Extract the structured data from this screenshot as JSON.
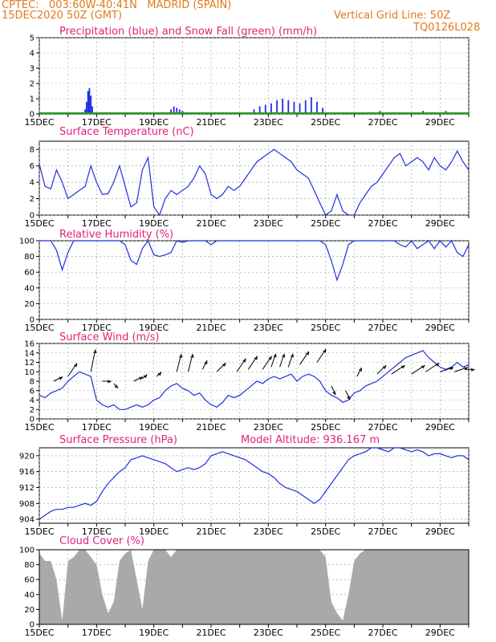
{
  "header": {
    "station": "CPTEC:   003:60W-40:41N   MADRID (SPAIN)",
    "run": "15DEC2020 50Z (GMT)",
    "grid_note": "Vertical Grid Line: 50Z",
    "code": "TQ0126L028"
  },
  "model_altitude": "Model Altitude: 936.167 m",
  "colors": {
    "line": "#1f2ee0",
    "snow": "#18a018",
    "cloud": "#a9a9a9",
    "title": "#e0227a",
    "header": "#e07a1a"
  },
  "chart_data": [
    {
      "type": "bar",
      "title": "Precipitation (blue) and Snow Fall (green) (mm/h)",
      "x_range": [
        15,
        30
      ],
      "ylim": [
        0,
        5
      ],
      "yticks": [
        "0",
        "1",
        "2",
        "3",
        "4",
        "5"
      ],
      "xticks": [
        "15DEC",
        "17DEC",
        "19DEC",
        "21DEC",
        "23DEC",
        "25DEC",
        "27DEC",
        "29DEC"
      ],
      "grid": true,
      "precip": [
        [
          16.6,
          0.3
        ],
        [
          16.65,
          0.8
        ],
        [
          16.7,
          1.5
        ],
        [
          16.75,
          1.7
        ],
        [
          16.8,
          1.2
        ],
        [
          16.85,
          0.5
        ],
        [
          16.9,
          0.1
        ],
        [
          19.2,
          0.1
        ],
        [
          19.6,
          0.3
        ],
        [
          19.7,
          0.5
        ],
        [
          19.8,
          0.4
        ],
        [
          19.9,
          0.3
        ],
        [
          20.0,
          0.2
        ],
        [
          20.5,
          0.1
        ],
        [
          21.2,
          0.1
        ],
        [
          22.2,
          0.1
        ],
        [
          22.5,
          0.3
        ],
        [
          22.7,
          0.5
        ],
        [
          22.9,
          0.6
        ],
        [
          23.1,
          0.7
        ],
        [
          23.3,
          0.9
        ],
        [
          23.5,
          1.0
        ],
        [
          23.7,
          0.9
        ],
        [
          23.9,
          0.8
        ],
        [
          24.1,
          0.7
        ],
        [
          24.3,
          0.9
        ],
        [
          24.5,
          1.1
        ],
        [
          24.7,
          0.8
        ],
        [
          24.9,
          0.4
        ],
        [
          25.1,
          0.1
        ],
        [
          26.8,
          0.1
        ],
        [
          26.9,
          0.2
        ],
        [
          27.0,
          0.1
        ],
        [
          28.2,
          0.1
        ],
        [
          28.4,
          0.2
        ],
        [
          29.0,
          0.1
        ],
        [
          29.2,
          0.2
        ],
        [
          29.4,
          0.1
        ]
      ],
      "snow": [
        [
          15.0,
          0.05
        ],
        [
          30.0,
          0.05
        ]
      ]
    },
    {
      "type": "line",
      "title": "Surface Temperature (nC)",
      "x_range": [
        15,
        30
      ],
      "ylim": [
        0,
        9
      ],
      "yticks": [
        "0",
        "2",
        "4",
        "6",
        "8"
      ],
      "xticks": [
        "15DEC",
        "17DEC",
        "19DEC",
        "21DEC",
        "23DEC",
        "25DEC",
        "27DEC",
        "29DEC"
      ],
      "grid": true,
      "x": [
        15.0,
        15.2,
        15.4,
        15.6,
        15.8,
        16.0,
        16.2,
        16.4,
        16.6,
        16.8,
        17.0,
        17.2,
        17.4,
        17.6,
        17.8,
        18.0,
        18.2,
        18.4,
        18.6,
        18.8,
        19.0,
        19.2,
        19.4,
        19.6,
        19.8,
        20.0,
        20.2,
        20.4,
        20.6,
        20.8,
        21.0,
        21.2,
        21.4,
        21.6,
        21.8,
        22.0,
        22.2,
        22.4,
        22.6,
        22.8,
        23.0,
        23.2,
        23.4,
        23.6,
        23.8,
        24.0,
        24.2,
        24.4,
        24.6,
        24.8,
        25.0,
        25.2,
        25.4,
        25.6,
        25.8,
        26.0,
        26.2,
        26.4,
        26.6,
        26.8,
        27.0,
        27.2,
        27.4,
        27.6,
        27.8,
        28.0,
        28.2,
        28.4,
        28.6,
        28.8,
        29.0,
        29.2,
        29.4,
        29.6,
        29.8,
        30.0
      ],
      "values": [
        6.2,
        3.5,
        3.2,
        5.5,
        4.0,
        2.0,
        2.5,
        3.0,
        3.5,
        6.0,
        4.0,
        2.5,
        2.6,
        4.0,
        6.0,
        3.5,
        1.0,
        1.5,
        5.5,
        7.0,
        1.0,
        0.0,
        2.0,
        3.0,
        2.5,
        3.0,
        3.5,
        4.5,
        6.0,
        5.0,
        2.5,
        2.0,
        2.5,
        3.5,
        3.0,
        3.5,
        4.5,
        5.5,
        6.5,
        7.0,
        7.5,
        8.0,
        7.5,
        7.0,
        6.5,
        5.5,
        5.0,
        4.5,
        3.0,
        1.5,
        0.0,
        0.5,
        2.5,
        0.5,
        0.0,
        0.0,
        1.5,
        2.5,
        3.5,
        4.0,
        5.0,
        6.0,
        7.0,
        7.5,
        6.0,
        6.5,
        7.0,
        6.5,
        5.5,
        7.0,
        6.0,
        5.5,
        6.5,
        7.8,
        6.5,
        5.5
      ]
    },
    {
      "type": "line",
      "title": "Relative Humidity (%)",
      "x_range": [
        15,
        30
      ],
      "ylim": [
        0,
        100
      ],
      "yticks": [
        "0",
        "20",
        "40",
        "60",
        "80",
        "100"
      ],
      "xticks": [
        "15DEC",
        "17DEC",
        "19DEC",
        "21DEC",
        "23DEC",
        "25DEC",
        "27DEC",
        "29DEC"
      ],
      "grid": true,
      "x": [
        15.0,
        15.2,
        15.4,
        15.6,
        15.8,
        16.0,
        16.2,
        16.4,
        16.6,
        16.8,
        17.0,
        17.2,
        17.4,
        17.6,
        17.8,
        18.0,
        18.2,
        18.4,
        18.6,
        18.8,
        19.0,
        19.2,
        19.4,
        19.6,
        19.8,
        20.0,
        20.2,
        20.4,
        20.6,
        20.8,
        21.0,
        21.2,
        21.4,
        21.6,
        21.8,
        22.0,
        22.2,
        22.4,
        22.6,
        22.8,
        23.0,
        23.2,
        23.4,
        23.6,
        23.8,
        24.0,
        24.2,
        24.4,
        24.6,
        24.8,
        25.0,
        25.2,
        25.4,
        25.6,
        25.8,
        26.0,
        26.2,
        26.4,
        26.6,
        26.8,
        27.0,
        27.2,
        27.4,
        27.6,
        27.8,
        28.0,
        28.2,
        28.4,
        28.6,
        28.8,
        29.0,
        29.2,
        29.4,
        29.6,
        29.8,
        30.0
      ],
      "values": [
        100,
        100,
        100,
        88,
        63,
        85,
        100,
        100,
        100,
        100,
        100,
        100,
        100,
        100,
        100,
        95,
        75,
        70,
        90,
        100,
        82,
        80,
        82,
        85,
        100,
        98,
        100,
        100,
        100,
        100,
        95,
        100,
        100,
        100,
        100,
        100,
        100,
        100,
        100,
        100,
        100,
        100,
        100,
        100,
        100,
        100,
        100,
        100,
        100,
        100,
        95,
        75,
        50,
        70,
        95,
        100,
        100,
        100,
        100,
        100,
        100,
        100,
        100,
        95,
        92,
        100,
        90,
        95,
        100,
        90,
        100,
        92,
        100,
        85,
        80,
        95
      ]
    },
    {
      "type": "line",
      "title": "Surface Wind (m/s)",
      "x_range": [
        15,
        30
      ],
      "ylim": [
        0,
        16
      ],
      "yticks": [
        "0",
        "2",
        "4",
        "6",
        "8",
        "10",
        "12",
        "14",
        "16"
      ],
      "xticks": [
        "15DEC",
        "17DEC",
        "19DEC",
        "21DEC",
        "23DEC",
        "25DEC",
        "27DEC",
        "29DEC"
      ],
      "grid": true,
      "x": [
        15.0,
        15.2,
        15.4,
        15.6,
        15.8,
        16.0,
        16.2,
        16.4,
        16.6,
        16.8,
        17.0,
        17.2,
        17.4,
        17.6,
        17.8,
        18.0,
        18.2,
        18.4,
        18.6,
        18.8,
        19.0,
        19.2,
        19.4,
        19.6,
        19.8,
        20.0,
        20.2,
        20.4,
        20.6,
        20.8,
        21.0,
        21.2,
        21.4,
        21.6,
        21.8,
        22.0,
        22.2,
        22.4,
        22.6,
        22.8,
        23.0,
        23.2,
        23.4,
        23.6,
        23.8,
        24.0,
        24.2,
        24.4,
        24.6,
        24.8,
        25.0,
        25.2,
        25.4,
        25.6,
        25.8,
        26.0,
        26.2,
        26.4,
        26.6,
        26.8,
        27.0,
        27.2,
        27.4,
        27.6,
        27.8,
        28.0,
        28.2,
        28.4,
        28.6,
        28.8,
        29.0,
        29.2,
        29.4,
        29.6,
        29.8,
        30.0
      ],
      "values": [
        5,
        4.5,
        5.5,
        6,
        6.5,
        8,
        9,
        10,
        9.5,
        9,
        4,
        3,
        2.5,
        3,
        2,
        2,
        2.5,
        3,
        2.5,
        3,
        4,
        4.5,
        6,
        7,
        7.5,
        6.5,
        6,
        5,
        5.5,
        4,
        3,
        2.5,
        3.5,
        5,
        4.5,
        5,
        6,
        7,
        8,
        7.5,
        8.5,
        9,
        8.5,
        9,
        9.5,
        8,
        9,
        9.5,
        9,
        8,
        6,
        5,
        4.5,
        3.5,
        4,
        5.5,
        6,
        7,
        7.5,
        8,
        9,
        10,
        11,
        12,
        13,
        13.5,
        14,
        14.5,
        13,
        12,
        11,
        10.5,
        11,
        12,
        11,
        11.5
      ],
      "barbs": [
        [
          15.5,
          8,
          2,
          1
        ],
        [
          16.0,
          9,
          2,
          3
        ],
        [
          16.8,
          10,
          1,
          5
        ],
        [
          17.2,
          8,
          2,
          0
        ],
        [
          17.6,
          7.5,
          1,
          -1
        ],
        [
          18.3,
          8,
          2,
          1
        ],
        [
          18.6,
          8.5,
          1,
          1
        ],
        [
          19.1,
          9,
          1,
          1
        ],
        [
          19.8,
          10,
          1,
          4
        ],
        [
          20.2,
          10,
          1,
          4
        ],
        [
          20.7,
          10.5,
          1,
          2
        ],
        [
          21.2,
          10,
          2,
          2
        ],
        [
          21.9,
          10,
          2,
          3
        ],
        [
          22.3,
          10.5,
          2,
          3
        ],
        [
          22.8,
          10.5,
          2,
          3
        ],
        [
          23.1,
          11,
          1,
          3
        ],
        [
          23.4,
          11,
          1,
          3
        ],
        [
          23.7,
          11,
          1,
          3
        ],
        [
          24.1,
          11.5,
          2,
          3
        ],
        [
          24.7,
          12,
          2,
          3
        ],
        [
          25.2,
          7,
          1,
          -2
        ],
        [
          25.7,
          6,
          1,
          -2
        ],
        [
          26.1,
          9,
          1,
          2
        ],
        [
          26.8,
          9.5,
          2,
          2
        ],
        [
          27.3,
          9.5,
          3,
          2
        ],
        [
          28.0,
          9.5,
          3,
          2
        ],
        [
          28.5,
          10,
          3,
          2
        ],
        [
          29.0,
          10,
          3,
          1
        ],
        [
          29.5,
          10,
          3,
          1
        ],
        [
          29.9,
          10.5,
          2,
          0
        ]
      ]
    },
    {
      "type": "line",
      "title": "Surface Pressure (hPa)",
      "x_range": [
        15,
        30
      ],
      "ylim": [
        903,
        922
      ],
      "yticks": [
        "904",
        "908",
        "912",
        "916",
        "920"
      ],
      "xticks": [
        "15DEC",
        "17DEC",
        "19DEC",
        "21DEC",
        "23DEC",
        "25DEC",
        "27DEC",
        "29DEC"
      ],
      "grid": true,
      "x": [
        15.0,
        15.2,
        15.4,
        15.6,
        15.8,
        16.0,
        16.2,
        16.4,
        16.6,
        16.8,
        17.0,
        17.2,
        17.4,
        17.6,
        17.8,
        18.0,
        18.2,
        18.4,
        18.6,
        18.8,
        19.0,
        19.2,
        19.4,
        19.6,
        19.8,
        20.0,
        20.2,
        20.4,
        20.6,
        20.8,
        21.0,
        21.2,
        21.4,
        21.6,
        21.8,
        22.0,
        22.2,
        22.4,
        22.6,
        22.8,
        23.0,
        23.2,
        23.4,
        23.6,
        23.8,
        24.0,
        24.2,
        24.4,
        24.6,
        24.8,
        25.0,
        25.2,
        25.4,
        25.6,
        25.8,
        26.0,
        26.2,
        26.4,
        26.6,
        26.8,
        27.0,
        27.2,
        27.4,
        27.6,
        27.8,
        28.0,
        28.2,
        28.4,
        28.6,
        28.8,
        29.0,
        29.2,
        29.4,
        29.6,
        29.8,
        30.0
      ],
      "values": [
        904,
        905,
        906,
        906.5,
        906.5,
        907,
        907,
        907.5,
        908,
        907.5,
        908.5,
        911,
        913,
        914.5,
        916,
        917,
        919,
        919.5,
        920,
        919.5,
        919,
        918.5,
        918,
        917,
        916,
        916.5,
        917,
        916.5,
        917,
        918,
        920,
        920.5,
        921,
        920.5,
        920,
        919.5,
        919,
        918,
        917,
        916,
        915.5,
        914.5,
        913,
        912,
        911.5,
        911,
        910,
        909,
        908,
        909,
        911,
        913,
        915,
        917,
        919,
        920,
        920.5,
        921,
        922,
        922,
        921.5,
        921,
        922,
        922,
        921.5,
        921,
        921.5,
        921,
        920,
        920.5,
        920.5,
        920,
        919.5,
        920,
        920,
        919
      ]
    },
    {
      "type": "area",
      "title": "Cloud Cover (%)",
      "x_range": [
        15,
        30
      ],
      "ylim": [
        0,
        100
      ],
      "yticks": [
        "0",
        "20",
        "40",
        "60",
        "80",
        "100"
      ],
      "xticks": [
        "15DEC",
        "17DEC",
        "19DEC",
        "21DEC",
        "23DEC",
        "25DEC",
        "27DEC",
        "29DEC"
      ],
      "grid": true,
      "x": [
        15.0,
        15.2,
        15.4,
        15.6,
        15.8,
        16.0,
        16.2,
        16.4,
        16.6,
        16.8,
        17.0,
        17.2,
        17.4,
        17.6,
        17.8,
        18.0,
        18.2,
        18.4,
        18.6,
        18.8,
        19.0,
        19.2,
        19.4,
        19.6,
        19.8,
        20.0,
        20.2,
        20.4,
        20.6,
        20.8,
        21.0,
        21.2,
        21.4,
        21.6,
        21.8,
        22.0,
        22.2,
        22.4,
        22.6,
        22.8,
        23.0,
        23.2,
        23.4,
        23.6,
        23.8,
        24.0,
        24.2,
        24.4,
        24.6,
        24.8,
        25.0,
        25.2,
        25.4,
        25.6,
        25.8,
        26.0,
        26.2,
        26.4,
        26.6,
        26.8,
        27.0,
        27.2,
        27.4,
        27.6,
        27.8,
        28.0,
        28.2,
        28.4,
        28.6,
        28.8,
        29.0,
        29.2,
        29.4,
        29.6,
        29.8,
        30.0
      ],
      "values": [
        95,
        85,
        85,
        60,
        5,
        85,
        90,
        100,
        100,
        90,
        80,
        40,
        15,
        30,
        85,
        95,
        100,
        60,
        20,
        85,
        100,
        100,
        100,
        90,
        100,
        100,
        100,
        100,
        100,
        100,
        100,
        100,
        100,
        100,
        100,
        100,
        100,
        100,
        100,
        100,
        100,
        100,
        100,
        100,
        100,
        100,
        100,
        100,
        100,
        100,
        90,
        30,
        15,
        5,
        40,
        85,
        95,
        100,
        100,
        100,
        100,
        100,
        100,
        100,
        100,
        100,
        100,
        100,
        100,
        100,
        100,
        100,
        100,
        100,
        100,
        100
      ]
    }
  ]
}
